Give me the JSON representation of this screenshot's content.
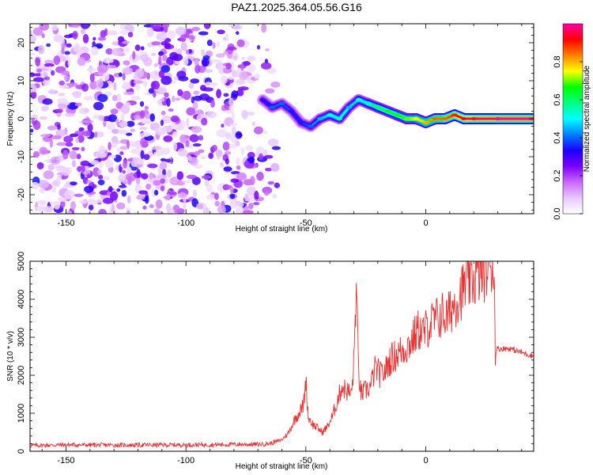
{
  "title": "PAZ1.2025.364.05.56.G16",
  "chart_data": [
    {
      "type": "heatmap",
      "xlabel": "Height of straight line (km)",
      "ylabel": "Frequency (Hz)",
      "xlim": [
        -165,
        45
      ],
      "ylim": [
        -25,
        25
      ],
      "x_ticks": [
        "-150",
        "-100",
        "-50",
        "0"
      ],
      "y_ticks": [
        "20",
        "10",
        "0",
        "-10",
        "-20"
      ],
      "colorbar": {
        "label": "Normalized spectral amplitude",
        "range": [
          0,
          1
        ],
        "ticks": [
          "0.0",
          "0.2",
          "0.4",
          "0.6",
          "0.8"
        ],
        "colors": [
          "#ffffff",
          "#e7c7ff",
          "#cc66ff",
          "#7a00ff",
          "#1a00ff",
          "#0080ff",
          "#00ffff",
          "#00ff80",
          "#00ff00",
          "#ffff00",
          "#ff8000",
          "#ff0000",
          "#ff00aa"
        ]
      },
      "ridge": {
        "x": [
          -68,
          -64,
          -60,
          -56,
          -52,
          -48,
          -44,
          -40,
          -36,
          -32,
          -28,
          -24,
          -20,
          -16,
          -12,
          -8,
          -4,
          0,
          4,
          8,
          12,
          16,
          20,
          30,
          45
        ],
        "y": [
          5,
          3,
          4,
          2,
          -1,
          -2,
          0,
          1,
          0,
          3,
          5,
          4,
          3,
          2,
          1,
          0,
          0,
          -1,
          0,
          0,
          1,
          0,
          0,
          0,
          0
        ],
        "amplitude": [
          0.3,
          0.4,
          0.4,
          0.35,
          0.35,
          0.4,
          0.45,
          0.5,
          0.55,
          0.45,
          0.5,
          0.55,
          0.6,
          0.65,
          0.65,
          0.7,
          0.75,
          0.8,
          0.85,
          0.85,
          0.9,
          0.95,
          0.95,
          1.0,
          1.0
        ]
      },
      "noise_region_x": [
        -165,
        -65
      ],
      "noise_amplitude": [
        0.05,
        0.35
      ]
    },
    {
      "type": "line",
      "xlabel": "Height of straight line (km)",
      "ylabel": "SNR (10 * v/v)",
      "xlim": [
        -165,
        45
      ],
      "ylim": [
        0,
        5000
      ],
      "x_ticks": [
        "-150",
        "-100",
        "-50",
        "0"
      ],
      "y_ticks": [
        "0",
        "1000",
        "2000",
        "3000",
        "4000",
        "5000"
      ],
      "series": [
        {
          "color": "#ee3030",
          "x": [
            -165,
            -150,
            -130,
            -110,
            -90,
            -80,
            -70,
            -65,
            -60,
            -57,
            -55,
            -53,
            -51,
            -50,
            -49,
            -47,
            -45,
            -43,
            -41,
            -39,
            -37,
            -35,
            -33,
            -31,
            -30,
            -29,
            -28,
            -27,
            -25,
            -23,
            -21,
            -19,
            -17,
            -15,
            -13,
            -11,
            -9,
            -7,
            -5,
            -3,
            -1,
            1,
            3,
            5,
            7,
            9,
            11,
            13,
            15,
            17,
            19,
            21,
            23,
            25,
            27,
            28,
            28.5,
            29,
            30,
            35,
            40,
            45
          ],
          "y": [
            150,
            170,
            160,
            165,
            170,
            180,
            180,
            200,
            300,
            500,
            800,
            1000,
            1200,
            1900,
            900,
            700,
            600,
            500,
            650,
            900,
            1300,
            1700,
            1600,
            1500,
            2300,
            4300,
            2100,
            1500,
            1600,
            1700,
            2200,
            2000,
            2100,
            2400,
            2500,
            2600,
            2700,
            2800,
            3000,
            3200,
            3100,
            3300,
            3400,
            3500,
            3600,
            3500,
            3800,
            4000,
            4200,
            4400,
            4500,
            4600,
            4700,
            4800,
            4900,
            5000,
            4600,
            2600,
            2700,
            2700,
            2600,
            2500
          ]
        }
      ]
    }
  ]
}
